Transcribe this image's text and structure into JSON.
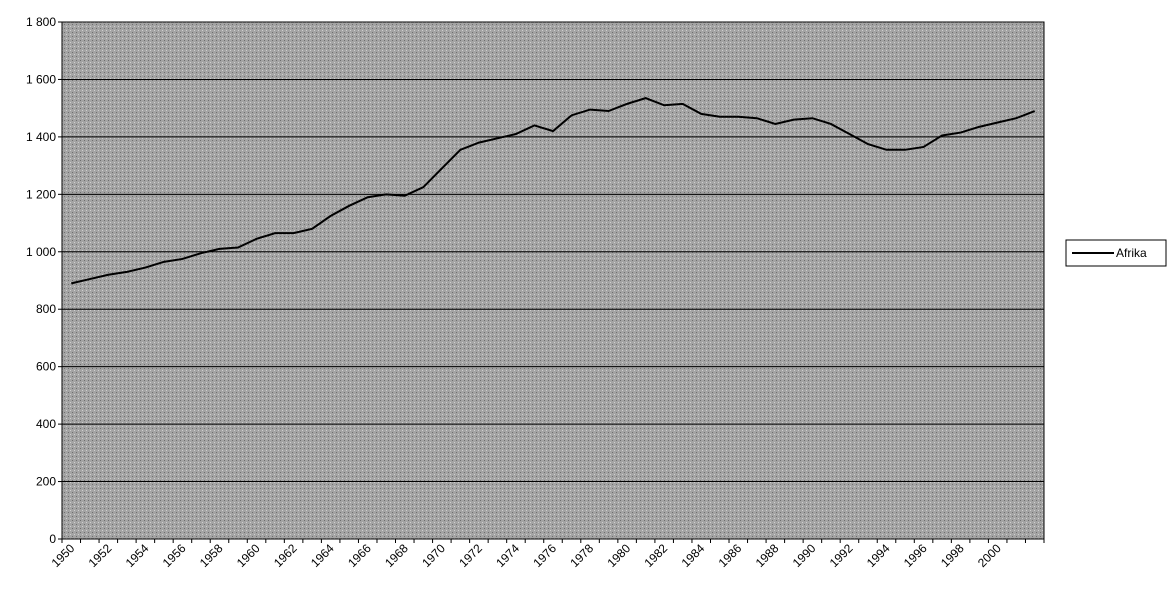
{
  "chart_data": {
    "type": "line",
    "categories": [
      "1950",
      null,
      "1952",
      null,
      "1954",
      null,
      "1956",
      null,
      "1958",
      null,
      "1960",
      null,
      "1962",
      null,
      "1964",
      null,
      "1966",
      null,
      "1968",
      null,
      "1970",
      null,
      "1972",
      null,
      "1974",
      null,
      "1976",
      null,
      "1978",
      null,
      "1980",
      null,
      "1982",
      null,
      "1984",
      null,
      "1986",
      null,
      "1988",
      null,
      "1990",
      null,
      "1992",
      null,
      "1994",
      null,
      "1996",
      null,
      "1998",
      null,
      "2000",
      null,
      null
    ],
    "series": [
      {
        "name": "Afrika",
        "color": "#000000",
        "values": [
          890,
          905,
          920,
          930,
          945,
          965,
          975,
          995,
          1010,
          1015,
          1045,
          1065,
          1065,
          1080,
          1125,
          1160,
          1190,
          1200,
          1195,
          1225,
          1290,
          1355,
          1380,
          1395,
          1410,
          1440,
          1420,
          1475,
          1495,
          1490,
          1515,
          1535,
          1510,
          1515,
          1480,
          1470,
          1470,
          1465,
          1445,
          1460,
          1465,
          1445,
          1410,
          1375,
          1355,
          1355,
          1365,
          1405,
          1415,
          1435,
          1450,
          1465,
          1490
        ]
      }
    ],
    "ylim": [
      0,
      1800
    ],
    "yticks": [
      0,
      200,
      400,
      600,
      800,
      {
        "value": 1000,
        "label": "1 000"
      },
      {
        "value": 1200,
        "label": "1 200"
      },
      {
        "value": 1400,
        "label": "1 400"
      },
      {
        "value": 1600,
        "label": "1 600"
      },
      {
        "value": 1800,
        "label": "1 800"
      }
    ],
    "grid": true,
    "legend": "right"
  }
}
